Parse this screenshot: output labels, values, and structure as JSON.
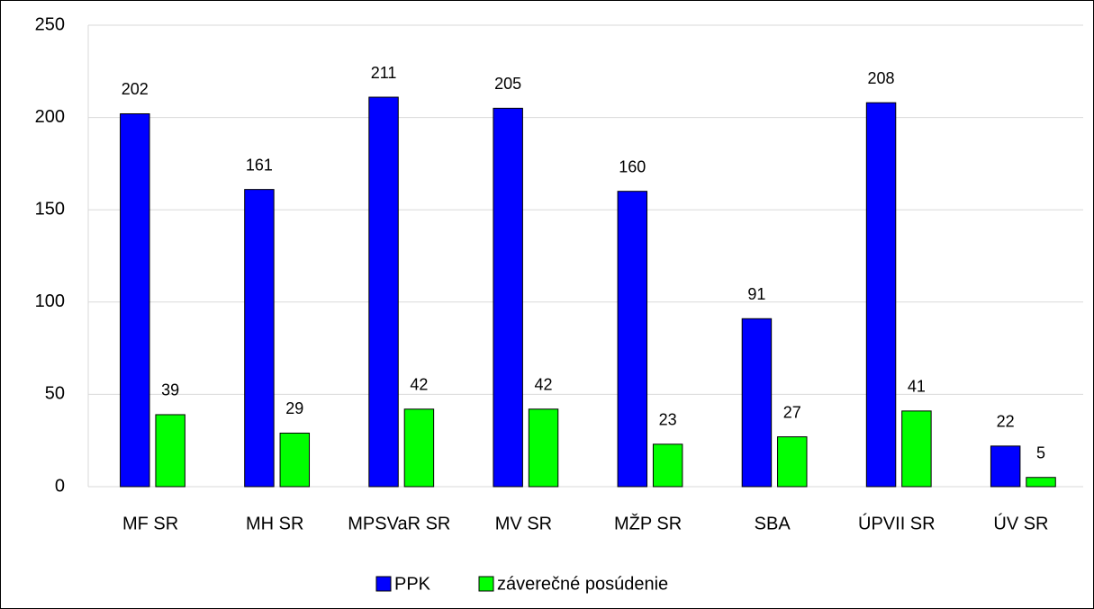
{
  "chart_data": {
    "type": "bar",
    "categories": [
      "MF SR",
      "MH SR",
      "MPSVaR SR",
      "MV SR",
      "MŽP SR",
      "SBA",
      "ÚPVII SR",
      "ÚV SR"
    ],
    "series": [
      {
        "name": "PPK",
        "color": "#0000ff",
        "values": [
          202,
          161,
          211,
          205,
          160,
          91,
          208,
          22
        ]
      },
      {
        "name": "záverečné posúdenie",
        "color": "#00ff00",
        "values": [
          39,
          29,
          42,
          42,
          23,
          27,
          41,
          5
        ]
      }
    ],
    "ylim": [
      0,
      250
    ],
    "yticks": [
      0,
      50,
      100,
      150,
      200,
      250
    ],
    "grid": true,
    "legend": "bottom"
  }
}
